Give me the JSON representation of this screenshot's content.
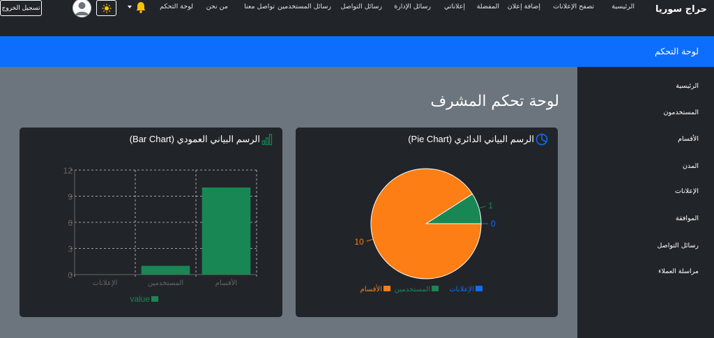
{
  "navbar": {
    "brand": "حراج سوريا",
    "links": [
      {
        "label": "الرئيسية"
      },
      {
        "label": "تصفح الإعلانات"
      },
      {
        "label": "إضافة إعلان"
      },
      {
        "label": "المفضلة"
      },
      {
        "label": "إعلاناتي"
      },
      {
        "label": "رسائل الإدارة"
      },
      {
        "label": "رسائل التواصل"
      },
      {
        "label": "رسائل المستخدمين"
      },
      {
        "label": "تواصل معنا"
      },
      {
        "label": "من نحن"
      },
      {
        "label": "لوحة التحكم"
      }
    ],
    "logout_label": "تسجيل الخروج",
    "bell_color": "#ffc107"
  },
  "header": {
    "title": "لوحة التحكم"
  },
  "sidebar": {
    "items": [
      {
        "label": "الرئيسية"
      },
      {
        "label": "المستخدمون"
      },
      {
        "label": "الأقسام"
      },
      {
        "label": "المدن"
      },
      {
        "label": "الإعلانات"
      },
      {
        "label": "الموافقة"
      },
      {
        "label": "رسائل التواصل"
      },
      {
        "label": "مراسلة العملاء"
      }
    ]
  },
  "main": {
    "title": "لوحة تحكم المشرف"
  },
  "cards": {
    "pie_title": "الرسم البياني الدائري (Pie Chart)",
    "bar_title": "الرسم البياني العمودي (Bar Chart)"
  },
  "colors": {
    "accent": "#0d6efd",
    "dark": "#212529",
    "background": "#6c757d",
    "green": "#198754",
    "orange": "#fd7e14",
    "blue": "#0d6efd"
  },
  "chart_data": [
    {
      "type": "pie",
      "categories": [
        "الإعلانات",
        "المستخدمين",
        "الأقسام"
      ],
      "values": [
        0,
        1,
        10
      ],
      "colors": [
        "#0d6efd",
        "#198754",
        "#fd7e14"
      ],
      "legend": "bottom"
    },
    {
      "type": "bar",
      "categories": [
        "الإعلانات",
        "المستخدمين",
        "الأقسام"
      ],
      "series": [
        {
          "name": "value",
          "values": [
            0,
            1,
            10
          ]
        }
      ],
      "ylim": [
        0,
        12
      ],
      "yticks": [
        0,
        3,
        6,
        9,
        12
      ],
      "grid": true,
      "color": "#198754",
      "legend": "bottom"
    }
  ]
}
